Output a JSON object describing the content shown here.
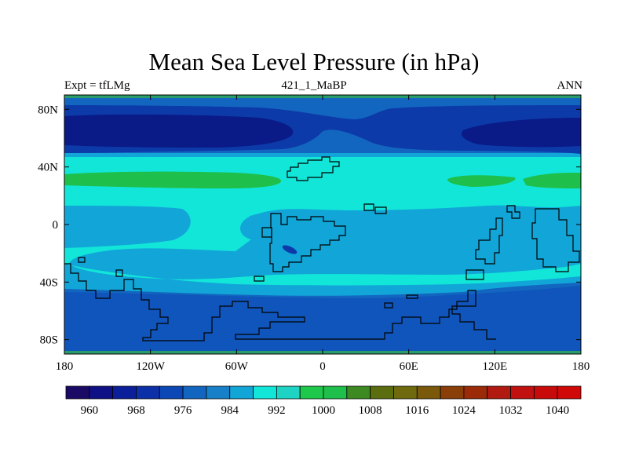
{
  "title": "Mean Sea Level Pressure (in hPa)",
  "subtitle_left": "Expt = tfLMg",
  "subtitle_center": "421_1_MaBP",
  "subtitle_right": "ANN",
  "map": {
    "lon_range": [
      -180,
      180
    ],
    "lat_range": [
      -90,
      90
    ],
    "x_ticks": [
      {
        "value": -180,
        "label": "180"
      },
      {
        "value": -120,
        "label": "120W"
      },
      {
        "value": -60,
        "label": "60W"
      },
      {
        "value": 0,
        "label": "0"
      },
      {
        "value": 60,
        "label": "60E"
      },
      {
        "value": 120,
        "label": "120E"
      },
      {
        "value": 180,
        "label": "180"
      }
    ],
    "y_ticks": [
      {
        "value": 80,
        "label": "80N"
      },
      {
        "value": 40,
        "label": "40N"
      },
      {
        "value": 0,
        "label": "0"
      },
      {
        "value": -40,
        "label": "40S"
      },
      {
        "value": -80,
        "label": "80S"
      }
    ],
    "field_colors": {
      "very_low": "#0a1a86",
      "low": "#0c3aa8",
      "mid_low": "#1366c0",
      "mid": "#12a5d8",
      "high": "#12e6d8",
      "green": "#1ebf4a"
    }
  },
  "colorbar": {
    "colors": [
      "#1a0a66",
      "#0f0f86",
      "#0c1f9a",
      "#0c30a8",
      "#0c47b6",
      "#1366c0",
      "#1780c8",
      "#12a5d8",
      "#12e6d8",
      "#1ed2c4",
      "#1ec84a",
      "#1ebf4a",
      "#3e8a22",
      "#5a6e10",
      "#6f6a0e",
      "#7a5a0a",
      "#8a3e08",
      "#9a2a08",
      "#b01a10",
      "#c01010",
      "#c80a0a",
      "#d00808"
    ],
    "labels": [
      "960",
      "968",
      "976",
      "984",
      "992",
      "1000",
      "1008",
      "1016",
      "1024",
      "1032",
      "1040"
    ]
  }
}
